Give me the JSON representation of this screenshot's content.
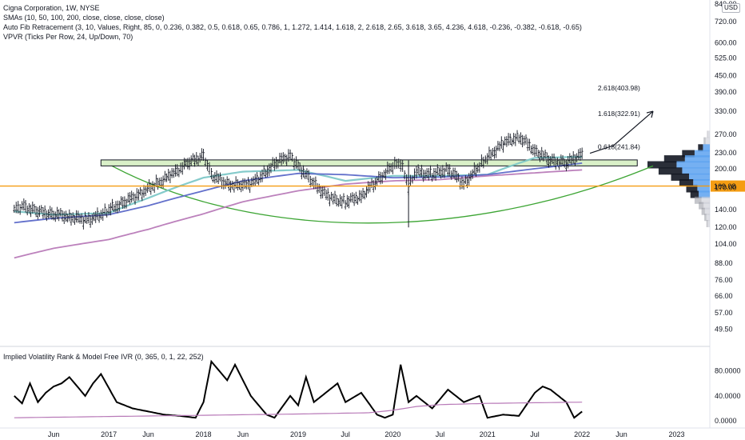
{
  "header": {
    "title": "Cigna Corporation, 1W, NYSE",
    "indicator_sma": "SMAs (10, 50, 100, 200, close, close, close, close)",
    "indicator_fib": "Auto Fib Retracement (3, 10, Values, Right, 85, 0, 0.236, 0.382, 0.5, 0.618, 0.65, 0.786, 1, 1.272, 1.414, 1.618, 2, 2.618, 2.65, 3.618, 3.65, 4.236, 4.618, -0.236, -0.382, -0.618, -0.65)",
    "indicator_vpvr": "VPVR (Ticks Per Row, 24, Up/Down, 70)",
    "indicator_ivr": "Implied Volatility Rank & Model Free IVR (0, 365, 0, 1, 22, 252)"
  },
  "currency_badge": "USD",
  "chart_data": [
    {
      "type": "line",
      "pane": "price",
      "scale": "log",
      "ylim": [
        45,
        840
      ],
      "y_ticks": [
        "840.00",
        "720.00",
        "600.00",
        "525.00",
        "450.00",
        "390.00",
        "330.00",
        "270.00",
        "230.00",
        "200.00",
        "170.00",
        "140.00",
        "120.00",
        "104.00",
        "88.00",
        "76.00",
        "66.00",
        "57.00",
        "49.50"
      ],
      "y_tick_values": [
        840,
        720,
        600,
        525,
        450,
        390,
        330,
        270,
        230,
        200,
        170,
        140,
        120,
        104,
        88,
        76,
        66,
        57,
        49.5
      ],
      "x_ticks": [
        "Jun",
        "2017",
        "Jun",
        "2018",
        "Jun",
        "2019",
        "Jul",
        "2020",
        "Jul",
        "2021",
        "Jul",
        "2022",
        "Jun",
        "2023"
      ],
      "x_tick_dates": [
        "2016-06",
        "2017-01",
        "2017-06",
        "2018-01",
        "2018-06",
        "2019-01",
        "2019-07",
        "2020-01",
        "2020-07",
        "2021-01",
        "2021-07",
        "2022-01",
        "2022-06",
        "2023-01"
      ],
      "current_price_label": "169.08",
      "current_price": 169.08,
      "price_series": {
        "dates": [
          "2016-01",
          "2016-02",
          "2016-04",
          "2016-06",
          "2016-08",
          "2016-10",
          "2016-12",
          "2017-01",
          "2017-03",
          "2017-05",
          "2017-07",
          "2017-09",
          "2017-11",
          "2018-01",
          "2018-02",
          "2018-04",
          "2018-06",
          "2018-08",
          "2018-10",
          "2018-12",
          "2019-01",
          "2019-03",
          "2019-05",
          "2019-07",
          "2019-09",
          "2019-11",
          "2020-01",
          "2020-02",
          "2020-03",
          "2020-04",
          "2020-06",
          "2020-08",
          "2020-10",
          "2020-12",
          "2021-01",
          "2021-03",
          "2021-05",
          "2021-07",
          "2021-09",
          "2021-11",
          "2022-01"
        ],
        "values": [
          140,
          145,
          138,
          135,
          132,
          128,
          133,
          140,
          150,
          162,
          175,
          190,
          210,
          225,
          190,
          175,
          172,
          182,
          210,
          225,
          205,
          175,
          155,
          150,
          158,
          180,
          205,
          210,
          170,
          195,
          190,
          200,
          175,
          205,
          220,
          250,
          265,
          235,
          215,
          210,
          229
        ]
      },
      "fib_levels": [
        {
          "label": "2.618(403.98)",
          "value": 403.98
        },
        {
          "label": "1.618(322.91)",
          "value": 322.91
        },
        {
          "label": "0.618(241.84)",
          "value": 241.84
        }
      ],
      "support_zone": {
        "low": 205,
        "high": 216
      },
      "horizontal_line": {
        "value": 172
      },
      "projection": {
        "dates": [
          "2022-02",
          "2022-05",
          "2022-10"
        ],
        "values": [
          229,
          245,
          330
        ]
      },
      "sma_lines": [
        {
          "color": "#7ec8c8",
          "dates": [
            "2016-01",
            "2016-06",
            "2017-01",
            "2017-06",
            "2018-01",
            "2018-06",
            "2019-01",
            "2019-07",
            "2020-01",
            "2020-07",
            "2021-01",
            "2021-07",
            "2022-01"
          ],
          "values": [
            138,
            134,
            136,
            155,
            185,
            195,
            198,
            180,
            188,
            188,
            190,
            220,
            222
          ]
        },
        {
          "color": "#5b68c8",
          "dates": [
            "2016-01",
            "2016-06",
            "2017-01",
            "2017-06",
            "2018-01",
            "2018-06",
            "2019-01",
            "2019-07",
            "2020-01",
            "2020-07",
            "2021-01",
            "2021-07",
            "2022-01"
          ],
          "values": [
            125,
            130,
            134,
            145,
            165,
            180,
            192,
            190,
            185,
            186,
            190,
            200,
            210
          ]
        },
        {
          "color": "#b87ab8",
          "dates": [
            "2016-01",
            "2016-06",
            "2017-01",
            "2017-06",
            "2018-01",
            "2018-06",
            "2019-01",
            "2019-07",
            "2020-01",
            "2020-07",
            "2021-01",
            "2021-07",
            "2022-01"
          ],
          "values": [
            92,
            100,
            108,
            118,
            135,
            150,
            165,
            175,
            180,
            182,
            188,
            193,
            198
          ]
        }
      ],
      "arc_colors": {
        "green": "#3da534",
        "orange": "#f59d12",
        "zone_fill": "#d9f0c8"
      },
      "vpvr": {
        "colors": {
          "up": "#5da2f0",
          "down": "#131722",
          "value_area_fade": "#c9ccd3"
        },
        "rows": [
          {
            "price": 270,
            "up": 3,
            "down": 1
          },
          {
            "price": 255,
            "up": 6,
            "down": 3
          },
          {
            "price": 240,
            "up": 10,
            "down": 7
          },
          {
            "price": 228,
            "up": 22,
            "down": 18
          },
          {
            "price": 218,
            "up": 36,
            "down": 30
          },
          {
            "price": 207,
            "up": 48,
            "down": 42
          },
          {
            "price": 196,
            "up": 40,
            "down": 34
          },
          {
            "price": 186,
            "up": 30,
            "down": 26
          },
          {
            "price": 177,
            "up": 24,
            "down": 20
          },
          {
            "price": 168,
            "up": 18,
            "down": 16
          },
          {
            "price": 160,
            "up": 16,
            "down": 12
          },
          {
            "price": 152,
            "up": 12,
            "down": 10
          },
          {
            "price": 145,
            "up": 9,
            "down": 7
          },
          {
            "price": 138,
            "up": 7,
            "down": 5
          },
          {
            "price": 131,
            "up": 5,
            "down": 3
          },
          {
            "price": 124,
            "up": 3,
            "down": 2
          }
        ]
      }
    },
    {
      "type": "line",
      "pane": "ivr",
      "ylim": [
        -5,
        100
      ],
      "y_ticks": [
        "80.0000",
        "40.0000",
        "0.0000"
      ],
      "y_tick_values": [
        80,
        40,
        0
      ],
      "series": [
        {
          "color": "#000000",
          "dates": [
            "2016-01",
            "2016-02",
            "2016-03",
            "2016-04",
            "2016-05",
            "2016-06",
            "2016-07",
            "2016-08",
            "2016-10",
            "2016-11",
            "2016-12",
            "2017-02",
            "2017-04",
            "2017-06",
            "2017-08",
            "2017-10",
            "2017-12",
            "2018-01",
            "2018-02",
            "2018-04",
            "2018-05",
            "2018-07",
            "2018-09",
            "2018-10",
            "2018-12",
            "2019-01",
            "2019-02",
            "2019-03",
            "2019-05",
            "2019-06",
            "2019-07",
            "2019-09",
            "2019-11",
            "2019-12",
            "2020-01",
            "2020-02",
            "2020-03",
            "2020-04",
            "2020-06",
            "2020-08",
            "2020-10",
            "2020-12",
            "2021-01",
            "2021-03",
            "2021-05",
            "2021-07",
            "2021-08",
            "2021-09",
            "2021-11",
            "2021-12",
            "2022-01"
          ],
          "values": [
            40,
            28,
            60,
            30,
            45,
            55,
            60,
            70,
            40,
            60,
            75,
            30,
            20,
            15,
            10,
            8,
            5,
            30,
            95,
            65,
            90,
            40,
            10,
            5,
            40,
            25,
            70,
            30,
            50,
            60,
            30,
            45,
            10,
            5,
            10,
            90,
            30,
            40,
            20,
            50,
            30,
            40,
            5,
            10,
            8,
            45,
            55,
            50,
            30,
            5,
            15
          ]
        },
        {
          "color": "#b87ab8",
          "dates": [
            "2016-01",
            "2017-01",
            "2018-01",
            "2019-01",
            "2019-10",
            "2020-01",
            "2020-04",
            "2020-07",
            "2021-01",
            "2021-07",
            "2022-01"
          ],
          "values": [
            5,
            7,
            9,
            11,
            13,
            17,
            23,
            26,
            28,
            29,
            30
          ]
        }
      ]
    }
  ]
}
